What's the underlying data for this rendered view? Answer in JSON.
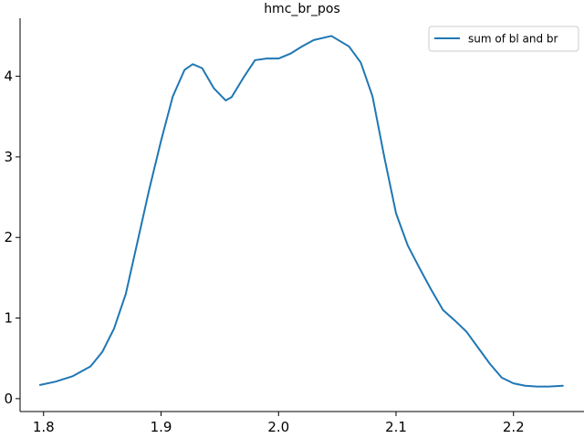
{
  "chart_data": {
    "type": "line",
    "title": "hmc_br_pos",
    "xlabel": "",
    "ylabel": "",
    "xlim": [
      1.78,
      2.26
    ],
    "ylim": [
      -0.16,
      4.72
    ],
    "x_ticks": [
      1.8,
      1.9,
      2.0,
      2.1,
      2.2
    ],
    "x_tick_labels": [
      "1.8",
      "1.9",
      "2.0",
      "2.1",
      "2.2"
    ],
    "y_ticks": [
      0,
      1,
      2,
      3,
      4
    ],
    "y_tick_labels": [
      "0",
      "1",
      "2",
      "3",
      "4"
    ],
    "grid": false,
    "legend_position": "top-right",
    "series": [
      {
        "name": "sum of bl and br",
        "color": "#1f77b4",
        "x": [
          1.797,
          1.81,
          1.825,
          1.84,
          1.85,
          1.86,
          1.87,
          1.88,
          1.89,
          1.9,
          1.91,
          1.92,
          1.927,
          1.935,
          1.945,
          1.955,
          1.96,
          1.97,
          1.98,
          1.99,
          2.0,
          2.01,
          2.02,
          2.03,
          2.045,
          2.06,
          2.07,
          2.08,
          2.09,
          2.1,
          2.11,
          2.12,
          2.13,
          2.14,
          2.15,
          2.16,
          2.17,
          2.18,
          2.19,
          2.2,
          2.21,
          2.22,
          2.23,
          2.242
        ],
        "y": [
          0.17,
          0.21,
          0.28,
          0.4,
          0.58,
          0.87,
          1.3,
          1.95,
          2.6,
          3.2,
          3.75,
          4.08,
          4.15,
          4.1,
          3.85,
          3.7,
          3.74,
          3.98,
          4.2,
          4.22,
          4.22,
          4.28,
          4.37,
          4.45,
          4.5,
          4.37,
          4.17,
          3.75,
          3.0,
          2.3,
          1.9,
          1.62,
          1.35,
          1.1,
          0.97,
          0.83,
          0.63,
          0.43,
          0.26,
          0.19,
          0.16,
          0.15,
          0.15,
          0.16
        ]
      }
    ]
  }
}
